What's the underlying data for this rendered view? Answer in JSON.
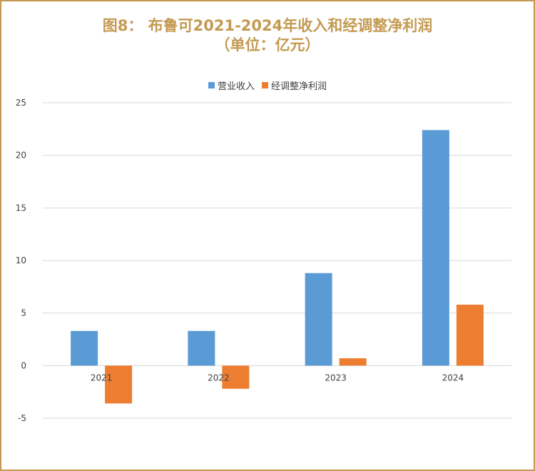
{
  "title": {
    "line1": "图8： 布鲁可2021-2024年收入和经调整净利润",
    "line2": "（单位：亿元）"
  },
  "colors": {
    "title": "#c49a52",
    "border": "#c49a52",
    "revenue": "#5b9bd5",
    "profit": "#ed7d31",
    "grid": "#d9d9d9",
    "axis_text": "#404040"
  },
  "chart_data": {
    "type": "bar",
    "categories": [
      "2021",
      "2022",
      "2023",
      "2024"
    ],
    "series": [
      {
        "name": "营业收入",
        "values": [
          3.3,
          3.3,
          8.8,
          22.4
        ]
      },
      {
        "name": "经调整净利润",
        "values": [
          -3.6,
          -2.2,
          0.7,
          5.8
        ]
      }
    ],
    "ylim": [
      -5,
      25
    ],
    "yticks": [
      -5,
      0,
      5,
      10,
      15,
      20,
      25
    ],
    "grid": true,
    "legend_position": "top-center",
    "xlabel": "",
    "ylabel": ""
  }
}
